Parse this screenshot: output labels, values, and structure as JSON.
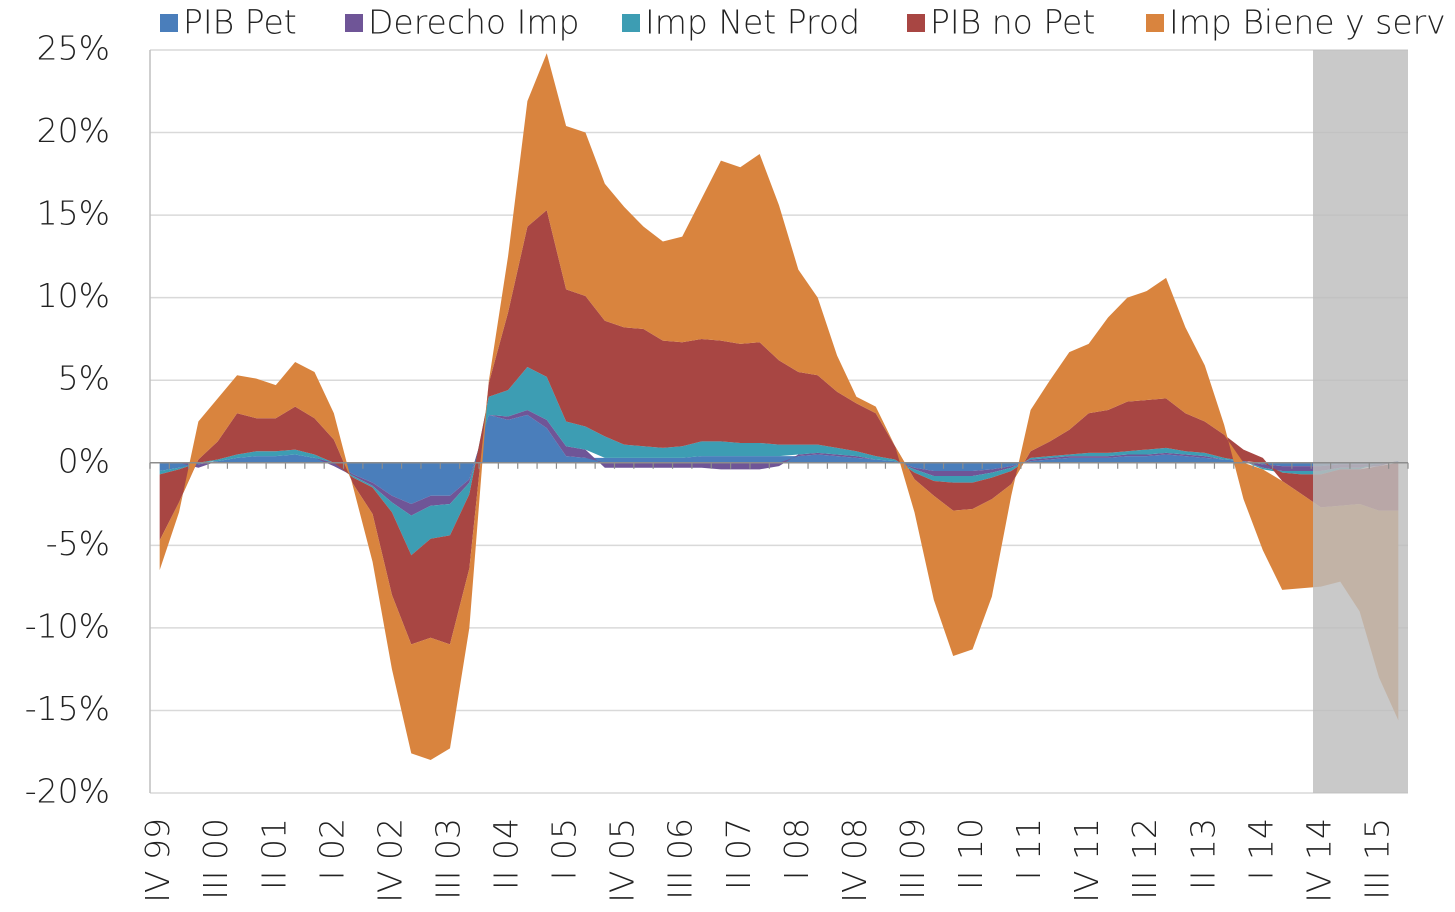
{
  "chart_data": {
    "type": "stacked_area",
    "categories": [
      "IV 99",
      null,
      null,
      "III 00",
      null,
      null,
      "II 01",
      null,
      null,
      "I 02",
      null,
      null,
      "IV 02",
      null,
      null,
      "III 03",
      null,
      null,
      "II 04",
      null,
      null,
      "I 05",
      null,
      null,
      "IV 05",
      null,
      null,
      "III 06",
      null,
      null,
      "II 07",
      null,
      null,
      "I 08",
      null,
      null,
      "IV 08",
      null,
      null,
      "III 09",
      null,
      null,
      "II 10",
      null,
      null,
      "I 11",
      null,
      null,
      "IV 11",
      null,
      null,
      "III 12",
      null,
      null,
      "II 13",
      null,
      null,
      "I 14",
      null,
      null,
      "IV 14",
      null,
      null,
      "III 15",
      null
    ],
    "series": [
      {
        "name": "PIB Pet",
        "color": "#4a7ebb",
        "values": [
          -0.5,
          -0.3,
          -0.1,
          0.1,
          0.3,
          0.4,
          0.4,
          0.5,
          0.3,
          0,
          -0.7,
          -1.2,
          -2.0,
          -2.5,
          -2.0,
          -2.0,
          -1.0,
          2.9,
          2.6,
          2.9,
          2.1,
          0.4,
          0.3,
          0.3,
          0.3,
          0.3,
          0.3,
          0.3,
          0.4,
          0.4,
          0.4,
          0.4,
          0.4,
          0.4,
          0.5,
          0.4,
          0.3,
          0.2,
          0.1,
          -0.3,
          -0.5,
          -0.5,
          -0.5,
          -0.4,
          -0.2,
          0.1,
          0.2,
          0.3,
          0.3,
          0.3,
          0.4,
          0.4,
          0.5,
          0.4,
          0.3,
          0.2,
          0.1,
          -0.1,
          -0.2,
          -0.2,
          -0.2,
          -0.1,
          -0.1,
          -0.1,
          0.1
        ]
      },
      {
        "name": "Derecho Imp",
        "color": "#6f5597",
        "values": [
          0,
          0,
          -0.2,
          0,
          0,
          0,
          0,
          0,
          0,
          -0.2,
          -0.1,
          -0.2,
          -0.4,
          -0.7,
          -0.6,
          -0.5,
          -0.2,
          0,
          0.2,
          0.3,
          0.5,
          0.6,
          0.5,
          -0.3,
          -0.3,
          -0.3,
          -0.3,
          -0.3,
          -0.3,
          -0.4,
          -0.4,
          -0.4,
          -0.2,
          0.1,
          0.1,
          0.1,
          0.1,
          0,
          0,
          -0.1,
          -0.3,
          -0.3,
          -0.3,
          -0.2,
          -0.1,
          0.1,
          0.1,
          0.1,
          0.1,
          0.1,
          0.1,
          0.1,
          0.1,
          0.1,
          0.1,
          0,
          0,
          -0.2,
          -0.3,
          -0.3,
          -0.3,
          -0.2,
          -0.2,
          -0.1,
          0
        ]
      },
      {
        "name": "Imp Net Prod",
        "color": "#3d9db3",
        "values": [
          -0.2,
          -0.1,
          0,
          0.1,
          0.2,
          0.3,
          0.3,
          0.3,
          0.2,
          0,
          -0.1,
          -0.1,
          -0.6,
          -2.4,
          -2.0,
          -1.9,
          -0.7,
          1.1,
          1.6,
          2.6,
          2.6,
          1.5,
          1.4,
          1.3,
          0.8,
          0.7,
          0.6,
          0.7,
          0.9,
          0.9,
          0.8,
          0.8,
          0.7,
          0.6,
          0.5,
          0.4,
          0.3,
          0.2,
          0.1,
          -0.2,
          -0.3,
          -0.4,
          -0.4,
          -0.3,
          -0.2,
          0.1,
          0.1,
          0.1,
          0.2,
          0.2,
          0.2,
          0.3,
          0.3,
          0.2,
          0.2,
          0.1,
          0,
          -0.1,
          -0.1,
          -0.2,
          -0.2,
          -0.1,
          -0.1,
          0,
          0
        ]
      },
      {
        "name": "PIB no Pet",
        "color": "#a84643",
        "values": [
          -4.0,
          -2.0,
          0.2,
          1.1,
          2.5,
          2.0,
          2.0,
          2.6,
          2.2,
          1.4,
          -0.4,
          -1.6,
          -5.0,
          -5.4,
          -6.0,
          -6.6,
          -4.5,
          0.8,
          4.7,
          8.5,
          10.1,
          8.0,
          7.9,
          7.0,
          7.1,
          7.1,
          6.5,
          6.3,
          6.2,
          6.1,
          6.0,
          6.1,
          5.1,
          4.4,
          4.2,
          3.4,
          2.9,
          2.6,
          0.8,
          -0.4,
          -0.9,
          -1.7,
          -1.6,
          -1.3,
          -0.8,
          0.4,
          0.9,
          1.5,
          2.4,
          2.6,
          3.0,
          3.0,
          3.0,
          2.3,
          1.9,
          1.4,
          0.7,
          0.3,
          -0.5,
          -1.2,
          -2.0,
          -2.2,
          -2.1,
          -2.7,
          -2.9
        ]
      },
      {
        "name": "Imp Biene y serv",
        "color": "#d9843e",
        "values": [
          -1.8,
          -0.6,
          2.3,
          2.6,
          2.3,
          2.4,
          2.0,
          2.7,
          2.8,
          1.6,
          -0.2,
          -2.9,
          -4.5,
          -6.6,
          -7.4,
          -6.3,
          -3.6,
          0.1,
          3.4,
          7.6,
          9.5,
          9.9,
          9.9,
          8.3,
          7.3,
          6.2,
          6.0,
          6.4,
          8.5,
          10.9,
          10.7,
          11.4,
          9.4,
          6.2,
          4.7,
          2.2,
          0.4,
          0.4,
          0,
          -2.0,
          -6.3,
          -8.8,
          -8.5,
          -5.9,
          -0.7,
          2.5,
          3.7,
          4.7,
          4.2,
          5.6,
          6.3,
          6.6,
          7.3,
          5.2,
          3.4,
          0.6,
          -2.2,
          -4.9,
          -6.6,
          -5.7,
          -4.8,
          -4.6,
          -6.5,
          -10.1,
          -12.7
        ]
      }
    ],
    "ylim": [
      -20,
      25
    ],
    "yticks": [
      {
        "value": -20,
        "label": "-20%"
      },
      {
        "value": -15,
        "label": "-15%"
      },
      {
        "value": -10,
        "label": "-10%"
      },
      {
        "value": -5,
        "label": "-5%"
      },
      {
        "value": 0,
        "label": "0%"
      },
      {
        "value": 5,
        "label": "5%"
      },
      {
        "value": 10,
        "label": "10%"
      },
      {
        "value": 15,
        "label": "15%"
      },
      {
        "value": 20,
        "label": "20%"
      },
      {
        "value": 25,
        "label": "25%"
      }
    ],
    "grid": true,
    "legend": "top"
  }
}
